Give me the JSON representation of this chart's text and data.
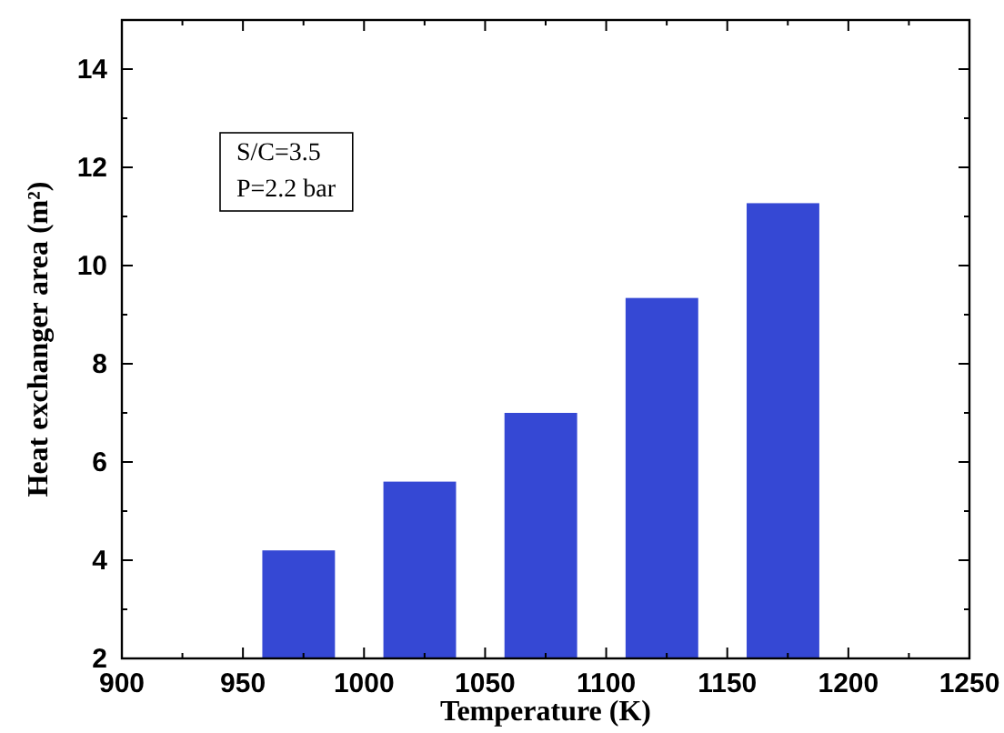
{
  "chart_data": {
    "type": "bar",
    "xlabel": "Temperature (K)",
    "ylabel": "Heat exchanger area (m²)",
    "x": [
      973,
      1023,
      1073,
      1123,
      1173
    ],
    "series": [
      {
        "color": "#3548d4",
        "values": [
          4.2,
          5.6,
          7.0,
          9.34,
          11.27
        ]
      }
    ],
    "xlim": [
      900,
      1250
    ],
    "xticks": [
      900,
      950,
      1000,
      1050,
      1100,
      1150,
      1200,
      1250
    ],
    "ylim": [
      2,
      15
    ],
    "yticks": [
      2,
      4,
      6,
      8,
      10,
      12,
      14
    ],
    "annotations": [
      "S/C=3.5",
      "P=2.2 bar"
    ]
  }
}
